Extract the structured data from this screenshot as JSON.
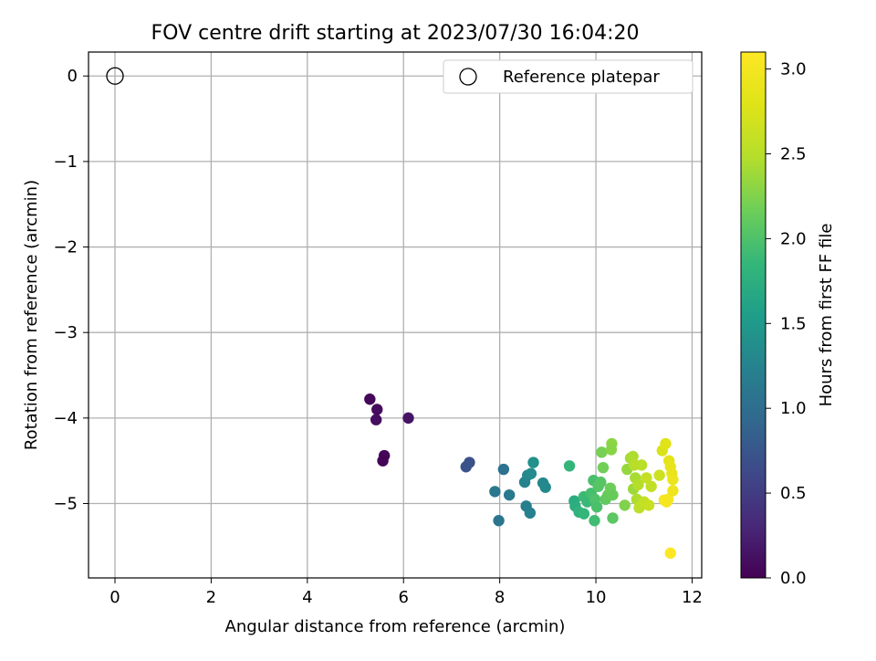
{
  "chart_data": {
    "type": "scatter",
    "title": "FOV centre drift starting at 2023/07/30 16:04:20",
    "xlabel": "Angular distance from reference (arcmin)",
    "ylabel": "Rotation from reference (arcmin)",
    "xlim": [
      -0.55,
      12.2
    ],
    "ylim": [
      -5.87,
      0.28
    ],
    "xticks": [
      0,
      2,
      4,
      6,
      8,
      10,
      12
    ],
    "yticks": [
      0,
      -1,
      -2,
      -3,
      -4,
      -5
    ],
    "grid": true,
    "legend": {
      "position": "top-right",
      "entries": [
        "Reference platepar"
      ]
    },
    "reference_point": {
      "x": 0,
      "y": 0,
      "marker": "open-circle"
    },
    "colorbar": {
      "label": "Hours from first FF file",
      "colormap": "viridis",
      "range": [
        0.0,
        3.1
      ],
      "ticks": [
        0.0,
        0.5,
        1.0,
        1.5,
        2.0,
        2.5,
        3.0
      ]
    },
    "series": [
      {
        "points": [
          {
            "x": 5.3,
            "y": -3.78,
            "c": 0.05
          },
          {
            "x": 5.45,
            "y": -3.9,
            "c": 0.08
          },
          {
            "x": 5.43,
            "y": -4.02,
            "c": 0.1
          },
          {
            "x": 6.1,
            "y": -4.0,
            "c": 0.15
          },
          {
            "x": 5.6,
            "y": -4.44,
            "c": 0.04
          },
          {
            "x": 5.57,
            "y": -4.5,
            "c": 0.02
          },
          {
            "x": 7.3,
            "y": -4.57,
            "c": 0.72
          },
          {
            "x": 7.37,
            "y": -4.52,
            "c": 0.7
          },
          {
            "x": 8.08,
            "y": -4.6,
            "c": 1.05
          },
          {
            "x": 7.9,
            "y": -4.86,
            "c": 1.12
          },
          {
            "x": 8.2,
            "y": -4.9,
            "c": 1.15
          },
          {
            "x": 7.98,
            "y": -5.2,
            "c": 1.1
          },
          {
            "x": 8.52,
            "y": -4.75,
            "c": 1.25
          },
          {
            "x": 8.58,
            "y": -4.67,
            "c": 1.3
          },
          {
            "x": 8.65,
            "y": -4.65,
            "c": 1.35
          },
          {
            "x": 8.7,
            "y": -4.52,
            "c": 1.4
          },
          {
            "x": 8.55,
            "y": -5.03,
            "c": 1.2
          },
          {
            "x": 8.63,
            "y": -5.11,
            "c": 1.22
          },
          {
            "x": 8.9,
            "y": -4.76,
            "c": 1.3
          },
          {
            "x": 8.95,
            "y": -4.81,
            "c": 1.32
          },
          {
            "x": 9.45,
            "y": -4.56,
            "c": 1.85
          },
          {
            "x": 9.55,
            "y": -4.97,
            "c": 1.72
          },
          {
            "x": 9.57,
            "y": -5.03,
            "c": 1.75
          },
          {
            "x": 9.65,
            "y": -5.1,
            "c": 1.8
          },
          {
            "x": 9.75,
            "y": -5.12,
            "c": 1.85
          },
          {
            "x": 9.75,
            "y": -4.92,
            "c": 1.9
          },
          {
            "x": 9.82,
            "y": -4.98,
            "c": 1.88
          },
          {
            "x": 9.9,
            "y": -4.88,
            "c": 1.95
          },
          {
            "x": 9.95,
            "y": -4.73,
            "c": 1.97
          },
          {
            "x": 9.98,
            "y": -4.95,
            "c": 2.0
          },
          {
            "x": 10.02,
            "y": -5.04,
            "c": 1.98
          },
          {
            "x": 10.05,
            "y": -4.8,
            "c": 2.03
          },
          {
            "x": 9.97,
            "y": -5.2,
            "c": 1.93
          },
          {
            "x": 10.1,
            "y": -4.75,
            "c": 2.05
          },
          {
            "x": 10.12,
            "y": -4.4,
            "c": 2.2
          },
          {
            "x": 10.15,
            "y": -4.58,
            "c": 2.18
          },
          {
            "x": 10.2,
            "y": -4.95,
            "c": 2.1
          },
          {
            "x": 10.25,
            "y": -4.9,
            "c": 2.12
          },
          {
            "x": 10.3,
            "y": -4.82,
            "c": 2.15
          },
          {
            "x": 10.33,
            "y": -4.3,
            "c": 2.3
          },
          {
            "x": 10.32,
            "y": -4.37,
            "c": 2.28
          },
          {
            "x": 10.35,
            "y": -4.9,
            "c": 2.13
          },
          {
            "x": 10.35,
            "y": -5.17,
            "c": 2.07
          },
          {
            "x": 10.6,
            "y": -5.02,
            "c": 2.25
          },
          {
            "x": 10.65,
            "y": -4.6,
            "c": 2.35
          },
          {
            "x": 10.72,
            "y": -4.47,
            "c": 2.4
          },
          {
            "x": 10.77,
            "y": -4.45,
            "c": 2.45
          },
          {
            "x": 10.8,
            "y": -4.55,
            "c": 2.5
          },
          {
            "x": 10.78,
            "y": -4.83,
            "c": 2.38
          },
          {
            "x": 10.82,
            "y": -4.7,
            "c": 2.42
          },
          {
            "x": 10.85,
            "y": -4.95,
            "c": 2.45
          },
          {
            "x": 10.88,
            "y": -4.78,
            "c": 2.48
          },
          {
            "x": 10.9,
            "y": -5.05,
            "c": 2.55
          },
          {
            "x": 10.95,
            "y": -4.55,
            "c": 2.52
          },
          {
            "x": 11.0,
            "y": -4.98,
            "c": 2.58
          },
          {
            "x": 11.05,
            "y": -4.7,
            "c": 2.6
          },
          {
            "x": 11.1,
            "y": -5.02,
            "c": 2.62
          },
          {
            "x": 11.15,
            "y": -4.8,
            "c": 2.57
          },
          {
            "x": 11.32,
            "y": -4.67,
            "c": 2.65
          },
          {
            "x": 11.38,
            "y": -4.38,
            "c": 2.75
          },
          {
            "x": 11.45,
            "y": -4.3,
            "c": 2.8
          },
          {
            "x": 11.42,
            "y": -4.96,
            "c": 3.0
          },
          {
            "x": 11.47,
            "y": -4.98,
            "c": 3.05
          },
          {
            "x": 11.5,
            "y": -4.95,
            "c": 3.02
          },
          {
            "x": 11.52,
            "y": -4.5,
            "c": 2.85
          },
          {
            "x": 11.55,
            "y": -4.57,
            "c": 2.88
          },
          {
            "x": 11.58,
            "y": -4.65,
            "c": 2.9
          },
          {
            "x": 11.6,
            "y": -4.72,
            "c": 2.92
          },
          {
            "x": 11.6,
            "y": -4.85,
            "c": 2.95
          },
          {
            "x": 11.55,
            "y": -5.58,
            "c": 3.1
          }
        ]
      }
    ]
  }
}
